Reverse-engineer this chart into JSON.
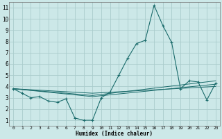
{
  "title": "",
  "xlabel": "Humidex (Indice chaleur)",
  "background_color": "#cce8e8",
  "grid_color": "#aacccc",
  "line_color": "#1a6b6b",
  "xlim": [
    -0.5,
    23.5
  ],
  "ylim": [
    0.5,
    11.5
  ],
  "xticks": [
    0,
    1,
    2,
    3,
    4,
    5,
    6,
    7,
    8,
    9,
    10,
    11,
    12,
    13,
    14,
    15,
    16,
    17,
    18,
    19,
    20,
    21,
    22,
    23
  ],
  "yticks": [
    1,
    2,
    3,
    4,
    5,
    6,
    7,
    8,
    9,
    10,
    11
  ],
  "line1": [
    [
      0,
      3.8
    ],
    [
      1,
      3.4
    ],
    [
      2,
      3.0
    ],
    [
      3,
      3.1
    ],
    [
      4,
      2.7
    ],
    [
      5,
      2.6
    ],
    [
      6,
      2.9
    ],
    [
      7,
      1.2
    ],
    [
      8,
      1.0
    ],
    [
      9,
      1.0
    ],
    [
      10,
      3.0
    ],
    [
      11,
      3.5
    ],
    [
      12,
      5.0
    ],
    [
      13,
      6.5
    ],
    [
      14,
      7.8
    ],
    [
      15,
      8.1
    ],
    [
      16,
      11.2
    ],
    [
      17,
      9.4
    ],
    [
      18,
      7.9
    ],
    [
      19,
      3.8
    ],
    [
      20,
      4.5
    ],
    [
      21,
      4.4
    ],
    [
      22,
      2.8
    ],
    [
      23,
      4.3
    ]
  ],
  "line2": [
    [
      0,
      3.8
    ],
    [
      9,
      3.1
    ],
    [
      23,
      4.2
    ]
  ],
  "line3": [
    [
      0,
      3.8
    ],
    [
      9,
      3.2
    ],
    [
      23,
      4.5
    ]
  ],
  "line4": [
    [
      0,
      3.8
    ],
    [
      9,
      3.4
    ],
    [
      23,
      4.0
    ]
  ]
}
